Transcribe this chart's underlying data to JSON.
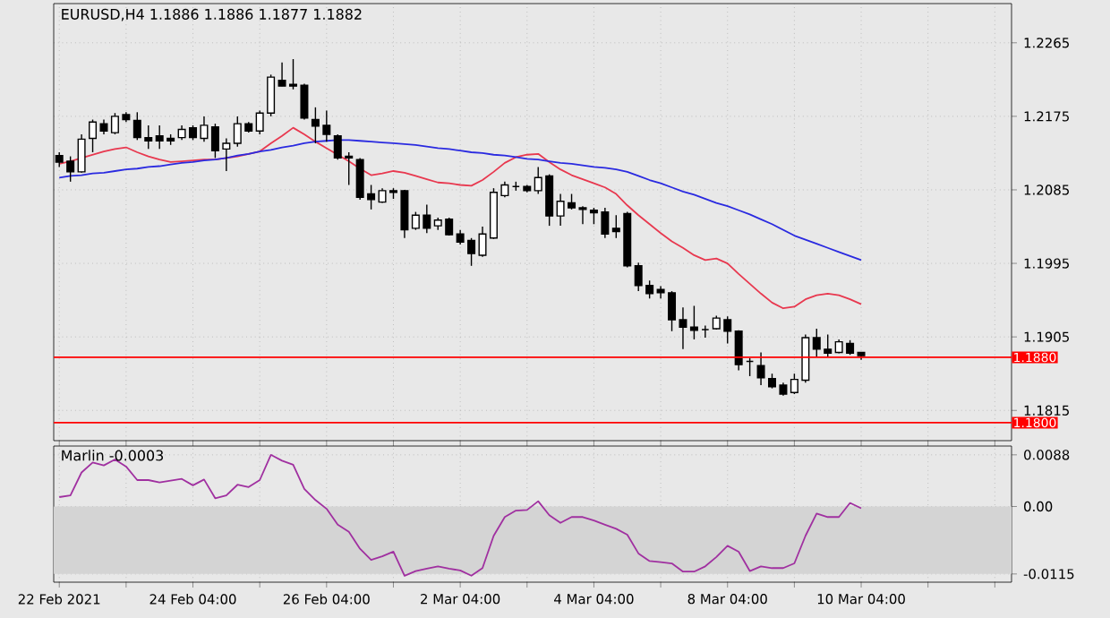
{
  "chart_data": [
    {
      "type": "candlestick",
      "title": "EURUSD,H4 1.1886 1.1886 1.1877 1.1882",
      "categories": [
        null,
        null,
        null,
        null,
        null,
        null,
        null,
        null,
        null,
        null,
        null,
        null,
        null,
        null,
        null,
        null,
        null,
        null,
        null,
        null,
        null,
        null,
        null,
        null,
        null,
        null,
        null,
        null,
        null,
        null,
        null,
        null,
        null,
        null,
        null,
        null,
        null,
        null,
        null,
        null,
        null,
        null,
        null,
        null,
        null,
        null,
        null,
        null,
        null,
        null,
        null,
        null,
        null,
        null,
        null,
        null,
        null,
        null,
        null,
        null,
        null,
        null,
        null,
        null,
        null,
        null,
        null,
        null,
        null,
        null,
        null,
        null,
        null
      ],
      "ohlc": [
        [
          1.2127,
          1.2131,
          1.2113,
          1.2119
        ],
        [
          1.212,
          1.2126,
          1.2095,
          1.2107
        ],
        [
          1.2107,
          1.2153,
          1.2106,
          1.2147
        ],
        [
          1.2148,
          1.2171,
          1.2131,
          1.2168
        ],
        [
          1.2166,
          1.2171,
          1.2153,
          1.2157
        ],
        [
          1.2155,
          1.2179,
          1.2153,
          1.2175
        ],
        [
          1.2177,
          1.218,
          1.2168,
          1.2171
        ],
        [
          1.217,
          1.218,
          1.2146,
          1.2149
        ],
        [
          1.2149,
          1.2164,
          1.2135,
          1.2145
        ],
        [
          1.2151,
          1.2164,
          1.2135,
          1.2145
        ],
        [
          1.2148,
          1.2153,
          1.214,
          1.2145
        ],
        [
          1.2149,
          1.2164,
          1.2146,
          1.2159
        ],
        [
          1.2161,
          1.2164,
          1.2146,
          1.2149
        ],
        [
          1.2148,
          1.2175,
          1.2144,
          1.2164
        ],
        [
          1.2162,
          1.2166,
          1.2124,
          1.2133
        ],
        [
          1.2135,
          1.2148,
          1.2108,
          1.2142
        ],
        [
          1.2142,
          1.2175,
          1.2138,
          1.2166
        ],
        [
          1.2166,
          1.2168,
          1.2155,
          1.2157
        ],
        [
          1.2157,
          1.2182,
          1.2153,
          1.2179
        ],
        [
          1.2179,
          1.2226,
          1.2175,
          1.2223
        ],
        [
          1.2219,
          1.2241,
          1.2212,
          1.2212
        ],
        [
          1.2214,
          1.2245,
          1.2208,
          1.2212
        ],
        [
          1.2213,
          1.2215,
          1.2171,
          1.2173
        ],
        [
          1.2171,
          1.2186,
          1.2142,
          1.2163
        ],
        [
          1.2164,
          1.2182,
          1.2144,
          1.2153
        ],
        [
          1.2151,
          1.2153,
          1.2122,
          1.2124
        ],
        [
          1.2126,
          1.2131,
          1.2091,
          1.2124
        ],
        [
          1.2122,
          1.2124,
          1.2073,
          1.2076
        ],
        [
          1.208,
          1.2091,
          1.2061,
          1.2073
        ],
        [
          1.207,
          1.2087,
          1.2069,
          1.2084
        ],
        [
          1.2084,
          1.2087,
          1.2074,
          1.2082
        ],
        [
          1.2084,
          1.2085,
          1.2026,
          1.2036
        ],
        [
          1.2038,
          1.2058,
          1.2036,
          1.2054
        ],
        [
          1.2054,
          1.2067,
          1.2032,
          1.2038
        ],
        [
          1.2041,
          1.2051,
          1.2036,
          1.2048
        ],
        [
          1.2049,
          1.2051,
          1.2029,
          1.203
        ],
        [
          1.2031,
          1.2036,
          1.2018,
          1.2021
        ],
        [
          1.2023,
          1.2026,
          1.1992,
          1.2007
        ],
        [
          1.2005,
          1.204,
          1.2003,
          1.2031
        ],
        [
          1.2026,
          1.2087,
          1.2025,
          1.2082
        ],
        [
          1.2078,
          1.2095,
          1.2076,
          1.2091
        ],
        [
          1.2089,
          1.2095,
          1.2084,
          1.2089
        ],
        [
          1.2089,
          1.2091,
          1.2082,
          1.2084
        ],
        [
          1.2084,
          1.2113,
          1.208,
          1.21
        ],
        [
          1.2102,
          1.2104,
          1.2041,
          1.2053
        ],
        [
          1.2053,
          1.208,
          1.2041,
          1.2071
        ],
        [
          1.2069,
          1.208,
          1.2061,
          1.2063
        ],
        [
          1.2063,
          1.2065,
          1.2043,
          1.2061
        ],
        [
          1.206,
          1.2063,
          1.2043,
          1.2057
        ],
        [
          1.2058,
          1.2063,
          1.2026,
          1.2031
        ],
        [
          1.2038,
          1.2054,
          1.2026,
          1.2034
        ],
        [
          1.2056,
          1.2058,
          1.199,
          1.1992
        ],
        [
          1.1992,
          1.1996,
          1.1961,
          1.1968
        ],
        [
          1.1968,
          1.1974,
          1.1952,
          1.1958
        ],
        [
          1.1963,
          1.1967,
          1.1952,
          1.1959
        ],
        [
          1.1959,
          1.1961,
          1.1912,
          1.1926
        ],
        [
          1.1926,
          1.1941,
          1.189,
          1.1917
        ],
        [
          1.1917,
          1.1943,
          1.1902,
          1.1913
        ],
        [
          1.1914,
          1.1919,
          1.1904,
          1.1914
        ],
        [
          1.1915,
          1.1931,
          1.1914,
          1.1928
        ],
        [
          1.1926,
          1.193,
          1.1897,
          1.1912
        ],
        [
          1.1912,
          1.1913,
          1.1864,
          1.1871
        ],
        [
          1.1875,
          1.1879,
          1.1857,
          1.1875
        ],
        [
          1.187,
          1.1886,
          1.1846,
          1.1855
        ],
        [
          1.1854,
          1.186,
          1.1842,
          1.1844
        ],
        [
          1.1846,
          1.1849,
          1.1833,
          1.1835
        ],
        [
          1.1837,
          1.186,
          1.1835,
          1.1853
        ],
        [
          1.1852,
          1.1908,
          1.1849,
          1.1904
        ],
        [
          1.1904,
          1.1915,
          1.188,
          1.189
        ],
        [
          1.189,
          1.1908,
          1.188,
          1.1885
        ],
        [
          1.1886,
          1.1902,
          1.1885,
          1.1899
        ],
        [
          1.1897,
          1.1901,
          1.1883,
          1.1885
        ],
        [
          1.1886,
          1.1886,
          1.1877,
          1.1882
        ]
      ],
      "series": [
        {
          "type": "line",
          "color": "#e8384f",
          "values": [
            1.2117,
            1.212,
            1.2124,
            1.2128,
            1.2132,
            1.2135,
            1.2137,
            1.2131,
            1.2126,
            1.2122,
            1.2119,
            1.212,
            1.2121,
            1.2122,
            1.2122,
            1.2124,
            1.2126,
            1.2129,
            1.2132,
            1.2142,
            1.2151,
            1.2161,
            1.2153,
            1.2144,
            1.2136,
            1.2128,
            1.212,
            1.2111,
            1.2103,
            1.2105,
            1.2108,
            1.2106,
            1.2102,
            1.2098,
            1.2094,
            1.2093,
            1.2091,
            1.209,
            1.2097,
            1.2107,
            1.2118,
            1.2125,
            1.2128,
            1.2129,
            1.2119,
            1.211,
            1.2103,
            1.2098,
            1.2093,
            1.2088,
            1.208,
            1.2066,
            1.2054,
            1.2043,
            1.2032,
            1.2022,
            1.2014,
            1.2005,
            1.1999,
            1.2001,
            1.1995,
            1.1982,
            1.197,
            1.1958,
            1.1947,
            1.194,
            1.1942,
            1.1951,
            1.1956,
            1.1958,
            1.1956,
            1.1951,
            1.1945
          ]
        },
        {
          "type": "line",
          "color": "#2a2ae0",
          "values": [
            1.21,
            1.2102,
            1.2103,
            1.2105,
            1.2106,
            1.2108,
            1.211,
            1.2111,
            1.2113,
            1.2114,
            1.2116,
            1.2118,
            1.2119,
            1.2121,
            1.2122,
            1.2124,
            1.2127,
            1.2129,
            1.2132,
            1.2134,
            1.2137,
            1.2139,
            1.2142,
            1.2144,
            1.2145,
            1.2146,
            1.2146,
            1.2145,
            1.2144,
            1.2143,
            1.2142,
            1.2141,
            1.214,
            1.2138,
            1.2136,
            1.2135,
            1.2133,
            1.2131,
            1.213,
            1.2128,
            1.2127,
            1.2125,
            1.2123,
            1.2122,
            1.212,
            1.2118,
            1.2117,
            1.2115,
            1.2113,
            1.2112,
            1.211,
            1.2107,
            1.2102,
            1.2097,
            1.2093,
            1.2088,
            1.2083,
            1.2079,
            1.2074,
            1.2069,
            1.2065,
            1.206,
            1.2055,
            1.2049,
            1.2043,
            1.2036,
            1.2029,
            1.2024,
            1.2019,
            1.2014,
            1.2009,
            1.2004,
            1.1999
          ]
        }
      ],
      "ref_lines": [
        {
          "axis": "y",
          "value": 1.188,
          "label": "1.1880",
          "color": "#ff0000"
        },
        {
          "axis": "y",
          "value": 1.18,
          "label": "1.1800",
          "color": "#ff0000"
        }
      ],
      "ylim": [
        1.1778,
        1.2313
      ],
      "yticks": [
        1.1815,
        1.1905,
        1.1995,
        1.2085,
        1.2175,
        1.2265
      ],
      "grid": true,
      "tick_labels": "y"
    },
    {
      "type": "line",
      "title": "Marlin -0.0003",
      "categories": [
        "22 Feb 2021",
        null,
        null,
        null,
        null,
        null,
        null,
        null,
        null,
        null,
        null,
        null,
        "24 Feb 04:00",
        null,
        null,
        null,
        null,
        null,
        null,
        null,
        null,
        null,
        null,
        null,
        "26 Feb 04:00",
        null,
        null,
        null,
        null,
        null,
        null,
        null,
        null,
        null,
        null,
        null,
        "2 Mar 04:00",
        null,
        null,
        null,
        null,
        null,
        null,
        null,
        null,
        null,
        null,
        null,
        "4 Mar 04:00",
        null,
        null,
        null,
        null,
        null,
        null,
        null,
        null,
        null,
        null,
        null,
        "8 Mar 04:00",
        null,
        null,
        null,
        null,
        null,
        null,
        null,
        null,
        null,
        null,
        null,
        "10 Mar 04:00"
      ],
      "series": [
        {
          "color": "#a030a0",
          "values": [
            0.0016,
            0.0019,
            0.0058,
            0.0075,
            0.007,
            0.008,
            0.0068,
            0.0045,
            0.0045,
            0.0041,
            0.0044,
            0.0047,
            0.0036,
            0.0046,
            0.0014,
            0.0019,
            0.0037,
            0.0033,
            0.0045,
            0.0088,
            0.0078,
            0.0071,
            0.003,
            0.0011,
            -0.0004,
            -0.0031,
            -0.0043,
            -0.0072,
            -0.0091,
            -0.0085,
            -0.0077,
            -0.0118,
            -0.011,
            -0.0106,
            -0.0102,
            -0.0106,
            -0.0109,
            -0.0118,
            -0.0105,
            -0.005,
            -0.0018,
            -0.0007,
            -0.0006,
            0.0009,
            -0.0015,
            -0.0028,
            -0.0018,
            -0.0018,
            -0.0024,
            -0.0031,
            -0.0038,
            -0.0048,
            -0.008,
            -0.0093,
            -0.0095,
            -0.0097,
            -0.0111,
            -0.0111,
            -0.0102,
            -0.0086,
            -0.0067,
            -0.0077,
            -0.011,
            -0.0102,
            -0.0105,
            -0.0105,
            -0.0097,
            -0.005,
            -0.0012,
            -0.0018,
            -0.0018,
            0.0006,
            -0.0003
          ]
        }
      ],
      "bands": [
        {
          "axis": "y",
          "from": -0.0115,
          "to": 0,
          "color": "#d4d4d4"
        }
      ],
      "ylim": [
        -0.0129,
        0.0103
      ],
      "yticks": [
        -0.0115,
        {
          "value": 0,
          "label": "0.00"
        },
        0.0088
      ],
      "grid": true
    }
  ]
}
